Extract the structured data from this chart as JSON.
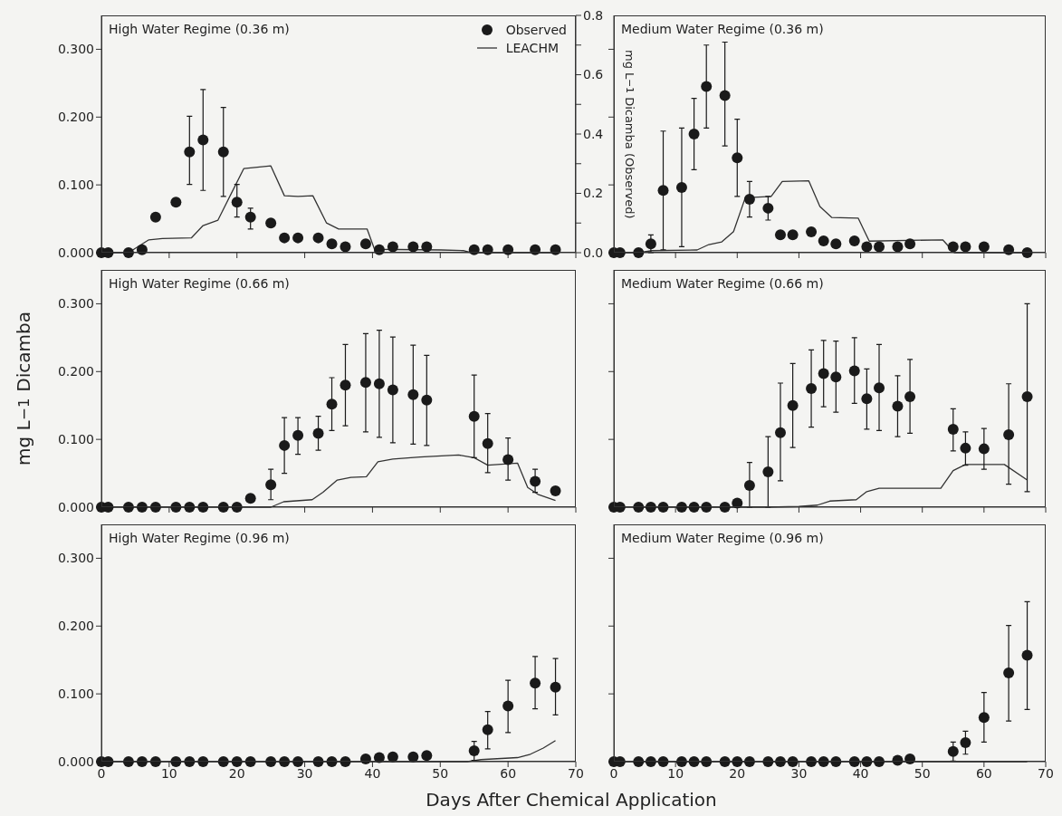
{
  "chart_data": [
    {
      "type": "line",
      "title": "High Water Regime (0.36 m)",
      "y2label": "mg L$^{−1}$ Dicamba (Observed)",
      "xlim": [
        0,
        70
      ],
      "xticks": [
        0,
        10,
        20,
        30,
        40,
        50,
        60,
        70
      ],
      "ylim": [
        0,
        0.35
      ],
      "yticks": [
        {
          "value": 0,
          "label": "0.000"
        },
        {
          "value": 0.1,
          "label": "0.100"
        },
        {
          "value": 0.2,
          "label": "0.200"
        },
        {
          "value": 0.3,
          "label": "0.300"
        }
      ],
      "y2lim": [
        0,
        0.8
      ],
      "y2ticks": [
        {
          "value": 0,
          "label": "0.0"
        },
        {
          "value": 0.1,
          "label": null
        },
        {
          "value": 0.2,
          "label": "0.2"
        },
        {
          "value": 0.3,
          "label": null
        },
        {
          "value": 0.4,
          "label": "0.4"
        },
        {
          "value": 0.5,
          "label": null
        },
        {
          "value": 0.6,
          "label": "0.6"
        },
        {
          "value": 0.7,
          "label": null
        },
        {
          "value": 0.8,
          "label": "0.8"
        }
      ],
      "tick_labels": "y",
      "legend": "top right",
      "series": [
        {
          "name": "Observed",
          "type": "scatter",
          "axis": "y2",
          "marker": "circle",
          "color": "#1a1a1a",
          "x": [
            0,
            1,
            4,
            6,
            8,
            11,
            13,
            15,
            18,
            20,
            22,
            25,
            27,
            29,
            32,
            34,
            36,
            39,
            41,
            43,
            46,
            48,
            55,
            57,
            60,
            64,
            67
          ],
          "values": [
            0,
            0,
            0,
            0.01,
            0.12,
            0.17,
            0.34,
            0.38,
            0.34,
            0.17,
            0.12,
            0.1,
            0.05,
            0.05,
            0.05,
            0.03,
            0.02,
            0.03,
            0.01,
            0.02,
            0.02,
            0.02,
            0.01,
            0.01,
            0.01,
            0.01,
            0.01
          ],
          "errors": [
            null,
            null,
            null,
            null,
            null,
            null,
            [
              0.23,
              0.46
            ],
            [
              0.21,
              0.55
            ],
            [
              0.19,
              0.49
            ],
            [
              0.12,
              0.23
            ],
            [
              0.08,
              0.15
            ],
            null,
            null,
            null,
            null,
            null,
            null,
            null,
            null,
            null,
            null,
            null,
            null,
            null,
            null,
            null,
            null
          ]
        },
        {
          "name": "LEACHM",
          "marker": "none",
          "line_style": "solid",
          "color": "#333333",
          "x": [
            0,
            4,
            7,
            9,
            13.3,
            15,
            17.2,
            21,
            25,
            27,
            29,
            31.2,
            33.2,
            35,
            39.2,
            40.3,
            50.1,
            53.5,
            54.6,
            67
          ],
          "values": [
            0,
            0,
            0.019,
            0.021,
            0.022,
            0.04,
            0.048,
            0.124,
            0.128,
            0.084,
            0.083,
            0.084,
            0.044,
            0.035,
            0.035,
            0.005,
            0.004,
            0.003,
            0,
            0
          ]
        }
      ]
    },
    {
      "type": "line",
      "title": "Medium Water Regime (0.36 m)",
      "xlim": [
        0,
        70
      ],
      "xticks": [
        0,
        10,
        20,
        30,
        40,
        50,
        60,
        70
      ],
      "ylim": [
        0,
        0.35
      ],
      "yticks": [
        {
          "value": 0,
          "label": null
        },
        {
          "value": 0.1,
          "label": null
        },
        {
          "value": 0.2,
          "label": null
        },
        {
          "value": 0.3,
          "label": null
        }
      ],
      "y2lim": [
        0,
        0.8
      ],
      "tick_labels": false,
      "series": [
        {
          "type": "scatter",
          "axis": "y2",
          "marker": "circle",
          "color": "#1a1a1a",
          "x": [
            0,
            1,
            4,
            6,
            8,
            11,
            13,
            15,
            18,
            20,
            22,
            25,
            27,
            29,
            32,
            34,
            36,
            39,
            41,
            43,
            46,
            48,
            55,
            57,
            60,
            64,
            67
          ],
          "values": [
            0,
            0,
            0,
            0.03,
            0.21,
            0.22,
            0.4,
            0.56,
            0.53,
            0.32,
            0.18,
            0.15,
            0.06,
            0.06,
            0.07,
            0.04,
            0.03,
            0.04,
            0.02,
            0.02,
            0.02,
            0.03,
            0.02,
            0.02,
            0.02,
            0.01,
            0.0
          ],
          "errors": [
            null,
            null,
            null,
            0.03,
            [
              0.01,
              0.41
            ],
            [
              0.02,
              0.42
            ],
            [
              0.28,
              0.52
            ],
            [
              0.42,
              0.7
            ],
            [
              0.36,
              0.71
            ],
            [
              0.19,
              0.45
            ],
            [
              0.12,
              0.24
            ],
            0.04,
            null,
            null,
            null,
            null,
            null,
            null,
            null,
            null,
            null,
            null,
            null,
            null,
            null,
            null,
            null
          ]
        },
        {
          "marker": "none",
          "line_style": "solid",
          "color": "#333333",
          "x": [
            0,
            4,
            6.2,
            13.5,
            15.4,
            17.5,
            19.4,
            21.3,
            25.5,
            27.3,
            31.6,
            33.4,
            35.3,
            39.6,
            41.4,
            53.3,
            55.2,
            67
          ],
          "values": [
            0,
            0,
            0.003,
            0.004,
            0.012,
            0.016,
            0.031,
            0.081,
            0.083,
            0.105,
            0.106,
            0.068,
            0.052,
            0.051,
            0.017,
            0.019,
            0,
            0
          ]
        }
      ]
    },
    {
      "type": "line",
      "title": "High Water Regime (0.66 m)",
      "ylabel": "mg L$^{−1}$ Dicamba",
      "xlim": [
        0,
        70
      ],
      "xticks": [
        0,
        10,
        20,
        30,
        40,
        50,
        60,
        70
      ],
      "ylim": [
        0,
        0.35
      ],
      "yticks": [
        {
          "value": 0,
          "label": "0.000"
        },
        {
          "value": 0.1,
          "label": "0.100"
        },
        {
          "value": 0.2,
          "label": "0.200"
        },
        {
          "value": 0.3,
          "label": "0.300"
        }
      ],
      "tick_labels": "y",
      "series": [
        {
          "type": "scatter",
          "marker": "circle",
          "color": "#1a1a1a",
          "x": [
            0,
            1,
            4,
            6,
            8,
            11,
            13,
            15,
            18,
            20,
            22,
            25,
            27,
            29,
            32,
            34,
            36,
            39,
            41,
            43,
            46,
            48,
            55,
            57,
            60,
            64,
            67
          ],
          "values": [
            0,
            0,
            0,
            0,
            0,
            0,
            0,
            0,
            0,
            0,
            0.013,
            0.033,
            0.091,
            0.106,
            0.109,
            0.152,
            0.18,
            0.184,
            0.182,
            0.173,
            0.166,
            0.158,
            0.134,
            0.094,
            0.07,
            0.038,
            0.024
          ],
          "errors": [
            null,
            null,
            null,
            null,
            null,
            null,
            null,
            null,
            null,
            null,
            null,
            [
              0.011,
              0.056
            ],
            [
              0.05,
              0.132
            ],
            [
              0.078,
              0.132
            ],
            [
              0.084,
              0.134
            ],
            [
              0.113,
              0.191
            ],
            [
              0.12,
              0.24
            ],
            [
              0.111,
              0.256
            ],
            [
              0.103,
              0.261
            ],
            [
              0.095,
              0.251
            ],
            [
              0.093,
              0.239
            ],
            [
              0.091,
              0.224
            ],
            [
              0.073,
              0.195
            ],
            [
              0.051,
              0.138
            ],
            [
              0.04,
              0.102
            ],
            [
              0.022,
              0.056
            ],
            null
          ]
        },
        {
          "marker": "none",
          "line_style": "solid",
          "color": "#333333",
          "x": [
            0,
            25,
            26.9,
            31.1,
            32.7,
            34.8,
            36.8,
            39.1,
            40.8,
            43,
            47,
            52.7,
            55,
            57,
            61.4,
            62.9,
            64.4,
            67
          ],
          "values": [
            0,
            0,
            0.008,
            0.011,
            0.022,
            0.04,
            0.044,
            0.045,
            0.067,
            0.071,
            0.074,
            0.077,
            0.073,
            0.062,
            0.065,
            0.029,
            0.019,
            0.01
          ]
        }
      ]
    },
    {
      "type": "line",
      "title": "Medium Water Regime (0.66 m)",
      "xlim": [
        0,
        70
      ],
      "xticks": [
        0,
        10,
        20,
        30,
        40,
        50,
        60,
        70
      ],
      "ylim": [
        0,
        0.35
      ],
      "yticks": [
        {
          "value": 0,
          "label": null
        },
        {
          "value": 0.1,
          "label": null
        },
        {
          "value": 0.2,
          "label": null
        },
        {
          "value": 0.3,
          "label": null
        }
      ],
      "tick_labels": false,
      "series": [
        {
          "type": "scatter",
          "marker": "circle",
          "color": "#1a1a1a",
          "x": [
            0,
            1,
            4,
            6,
            8,
            11,
            13,
            15,
            18,
            20,
            22,
            25,
            27,
            29,
            32,
            34,
            36,
            39,
            41,
            43,
            46,
            48,
            55,
            57,
            60,
            64,
            67
          ],
          "values": [
            0,
            0,
            0,
            0,
            0,
            0,
            0,
            0,
            0,
            0.006,
            0.032,
            0.052,
            0.11,
            0.15,
            0.175,
            0.197,
            0.192,
            0.201,
            0.16,
            0.176,
            0.149,
            0.163,
            0.115,
            0.087,
            0.086,
            0.107,
            0.163
          ],
          "errors": [
            null,
            null,
            null,
            null,
            null,
            null,
            null,
            null,
            null,
            null,
            [
              0,
              0.066
            ],
            [
              0,
              0.104
            ],
            [
              0.039,
              0.183
            ],
            [
              0.088,
              0.212
            ],
            [
              0.118,
              0.232
            ],
            [
              0.148,
              0.246
            ],
            [
              0.14,
              0.245
            ],
            [
              0.153,
              0.25
            ],
            [
              0.115,
              0.204
            ],
            [
              0.113,
              0.24
            ],
            [
              0.104,
              0.194
            ],
            [
              0.109,
              0.218
            ],
            [
              0.083,
              0.145
            ],
            [
              0.062,
              0.111
            ],
            [
              0.056,
              0.116
            ],
            [
              0.034,
              0.182
            ],
            [
              0.023,
              0.3
            ]
          ]
        },
        {
          "marker": "none",
          "line_style": "solid",
          "color": "#333333",
          "x": [
            0,
            25,
            30,
            33,
            35,
            39.3,
            41,
            43,
            53,
            55,
            57,
            63.3,
            67
          ],
          "values": [
            0,
            0,
            0.001,
            0.003,
            0.009,
            0.011,
            0.023,
            0.028,
            0.028,
            0.054,
            0.063,
            0.063,
            0.04
          ]
        }
      ]
    },
    {
      "type": "line",
      "title": "High Water Regime (0.96 m)",
      "xlabel": "Days After Chemical Application",
      "xlim": [
        0,
        70
      ],
      "xticks": [
        0,
        10,
        20,
        30,
        40,
        50,
        60,
        70
      ],
      "ylim": [
        0,
        0.35
      ],
      "yticks": [
        {
          "value": 0,
          "label": "0.000"
        },
        {
          "value": 0.1,
          "label": "0.100"
        },
        {
          "value": 0.2,
          "label": "0.200"
        },
        {
          "value": 0.3,
          "label": "0.300"
        }
      ],
      "series": [
        {
          "type": "scatter",
          "marker": "circle",
          "color": "#1a1a1a",
          "x": [
            0,
            1,
            4,
            6,
            8,
            11,
            13,
            15,
            18,
            20,
            22,
            25,
            27,
            29,
            32,
            34,
            36,
            39,
            41,
            43,
            46,
            48,
            55,
            57,
            60,
            64,
            67
          ],
          "values": [
            0,
            0,
            0,
            0,
            0,
            0,
            0,
            0,
            0,
            0,
            0,
            0,
            0,
            0,
            0,
            0,
            0,
            0.004,
            0.006,
            0.007,
            0.007,
            0.009,
            0.016,
            0.047,
            0.082,
            0.116,
            0.11
          ],
          "errors": [
            null,
            null,
            null,
            null,
            null,
            null,
            null,
            null,
            null,
            null,
            null,
            null,
            null,
            null,
            null,
            null,
            null,
            null,
            null,
            null,
            null,
            null,
            0.014,
            [
              0.019,
              0.074
            ],
            [
              0.043,
              0.12
            ],
            [
              0.078,
              0.155
            ],
            [
              0.069,
              0.152
            ]
          ]
        },
        {
          "marker": "none",
          "line_style": "solid",
          "color": "#333333",
          "x": [
            0,
            54,
            56,
            61.4,
            63.3,
            65.2,
            67
          ],
          "values": [
            0,
            0,
            0.003,
            0.006,
            0.011,
            0.02,
            0.031
          ]
        }
      ]
    },
    {
      "type": "line",
      "title": "Medium Water Regime (0.96 m)",
      "xlim": [
        0,
        70
      ],
      "xticks": [
        0,
        10,
        20,
        30,
        40,
        50,
        60,
        70
      ],
      "ylim": [
        0,
        0.35
      ],
      "yticks": [
        {
          "value": 0,
          "label": null
        },
        {
          "value": 0.1,
          "label": null
        },
        {
          "value": 0.2,
          "label": null
        },
        {
          "value": 0.3,
          "label": null
        }
      ],
      "tick_labels": "x",
      "series": [
        {
          "type": "scatter",
          "marker": "circle",
          "color": "#1a1a1a",
          "x": [
            0,
            1,
            4,
            6,
            8,
            11,
            13,
            15,
            18,
            20,
            22,
            25,
            27,
            29,
            32,
            34,
            36,
            39,
            41,
            43,
            46,
            48,
            55,
            57,
            60,
            64,
            67
          ],
          "values": [
            0,
            0,
            0,
            0,
            0,
            0,
            0,
            0,
            0,
            0,
            0,
            0,
            0,
            0,
            0,
            0,
            0,
            0,
            0,
            0,
            0.002,
            0.004,
            0.015,
            0.028,
            0.065,
            0.131,
            0.157
          ],
          "errors": [
            null,
            null,
            null,
            null,
            null,
            null,
            null,
            null,
            null,
            null,
            null,
            null,
            null,
            null,
            null,
            null,
            null,
            null,
            null,
            null,
            null,
            null,
            [
              0.001,
              0.029
            ],
            [
              0.011,
              0.045
            ],
            [
              0.029,
              0.102
            ],
            [
              0.06,
              0.201
            ],
            [
              0.077,
              0.236
            ]
          ]
        },
        {
          "marker": "none",
          "line_style": "solid",
          "color": "#333333",
          "x": [
            0,
            67
          ],
          "values": [
            0,
            0
          ]
        }
      ]
    }
  ]
}
